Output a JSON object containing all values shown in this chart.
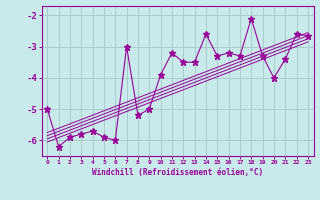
{
  "xlabel": "Windchill (Refroidissement éolien,°C)",
  "bg_color": "#c8eaea",
  "grid_color": "#aacccc",
  "line_color": "#990099",
  "xlim": [
    -0.5,
    23.5
  ],
  "ylim": [
    -6.5,
    -1.7
  ],
  "yticks": [
    -6,
    -5,
    -4,
    -3,
    -2
  ],
  "xticks": [
    0,
    1,
    2,
    3,
    4,
    5,
    6,
    7,
    8,
    9,
    10,
    11,
    12,
    13,
    14,
    15,
    16,
    17,
    18,
    19,
    20,
    21,
    22,
    23
  ],
  "scatter_x": [
    0,
    1,
    2,
    3,
    4,
    5,
    6,
    7,
    8,
    9,
    10,
    11,
    12,
    13,
    14,
    15,
    16,
    17,
    18,
    19,
    20,
    21,
    22,
    23
  ],
  "scatter_y": [
    -5.0,
    -6.2,
    -5.9,
    -5.8,
    -5.7,
    -5.9,
    -6.0,
    -3.0,
    -5.2,
    -5.0,
    -3.9,
    -3.2,
    -3.5,
    -3.5,
    -2.6,
    -3.3,
    -3.2,
    -3.3,
    -2.1,
    -3.3,
    -4.0,
    -3.4,
    -2.6,
    -2.65
  ],
  "trend_lines": [
    {
      "x": [
        0,
        23
      ],
      "y": [
        -5.75,
        -2.55
      ]
    },
    {
      "x": [
        0,
        23
      ],
      "y": [
        -5.85,
        -2.65
      ]
    },
    {
      "x": [
        0,
        23
      ],
      "y": [
        -5.95,
        -2.75
      ]
    },
    {
      "x": [
        0,
        23
      ],
      "y": [
        -6.05,
        -2.85
      ]
    }
  ]
}
